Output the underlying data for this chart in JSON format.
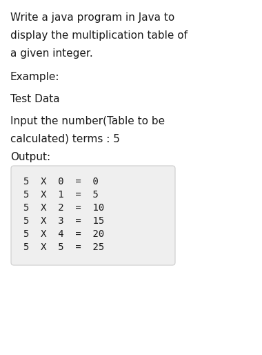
{
  "bg_color": "#ffffff",
  "text_color": "#1a1a1a",
  "box_bg_color": "#efefef",
  "box_border_color": "#cccccc",
  "title_lines": [
    "Write a java program in Java to",
    "display the multiplication table of",
    "a given integer."
  ],
  "example_label": "Example:",
  "test_data_label": "Test Data",
  "input_lines": [
    "Input the number(Table to be",
    "calculated) terms : 5"
  ],
  "output_label": "Output:",
  "table_rows": [
    "5  X  0  =  0",
    "5  X  1  =  5",
    "5  X  2  =  10",
    "5  X  3  =  15",
    "5  X  4  =  20",
    "5  X  5  =  25"
  ],
  "main_fontsize": 11.0,
  "mono_fontsize": 10.0,
  "fig_width": 3.8,
  "fig_height": 5.14,
  "dpi": 100
}
